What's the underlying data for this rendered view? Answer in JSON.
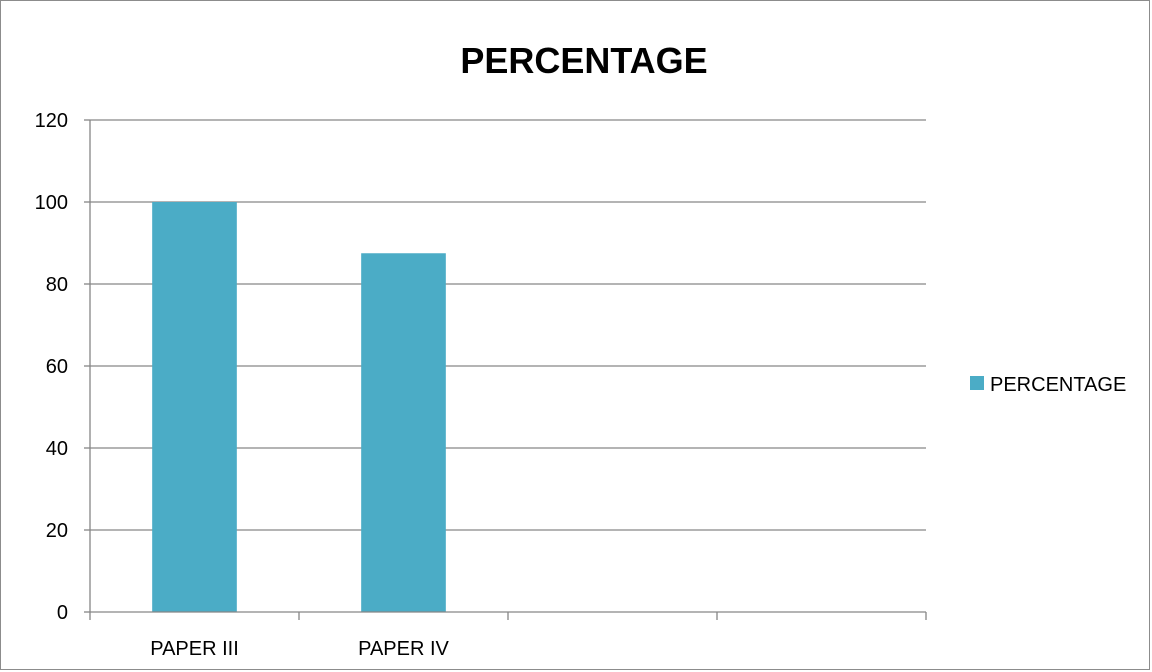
{
  "chart_data": {
    "type": "bar",
    "title": "PERCENTAGE",
    "categories": [
      "PAPER III",
      "PAPER IV",
      "",
      ""
    ],
    "series": [
      {
        "name": "PERCENTAGE",
        "values": [
          100,
          87.5,
          null,
          null
        ],
        "color": "#4bacc6"
      }
    ],
    "xlabel": "",
    "ylabel": "",
    "ylim": [
      0,
      120
    ],
    "yticks": [
      0,
      20,
      40,
      60,
      80,
      100,
      120
    ],
    "grid": true,
    "legend_position": "right"
  }
}
